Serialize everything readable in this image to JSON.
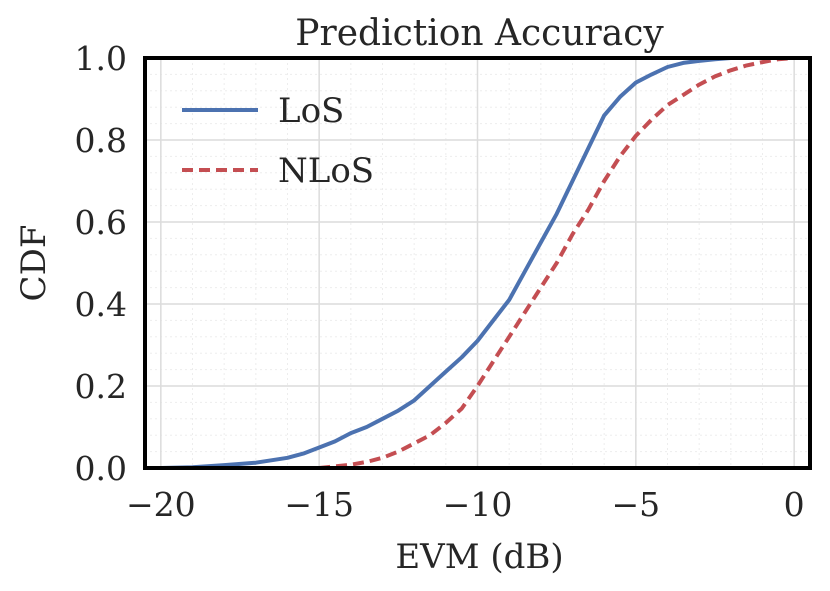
{
  "chart_data": {
    "type": "line",
    "title": "Prediction Accuracy",
    "xlabel": "EVM (dB)",
    "ylabel": "CDF",
    "xlim": [
      -20.5,
      0.5
    ],
    "ylim": [
      0.0,
      1.0
    ],
    "xticks": [
      -20,
      -15,
      -10,
      -5,
      0
    ],
    "xtick_labels": [
      "−20",
      "−15",
      "−10",
      "−5",
      "0"
    ],
    "yticks": [
      0.0,
      0.2,
      0.4,
      0.6,
      0.8,
      1.0
    ],
    "ytick_labels": [
      "0.0",
      "0.2",
      "0.4",
      "0.6",
      "0.8",
      "1.0"
    ],
    "grid": true,
    "legend_position": "top-left",
    "series": [
      {
        "name": "LoS",
        "color": "#4c72b0",
        "style": "solid",
        "x": [
          -20.0,
          -19.0,
          -18.0,
          -17.0,
          -16.0,
          -15.5,
          -15.0,
          -14.5,
          -14.0,
          -13.5,
          -13.0,
          -12.5,
          -12.0,
          -11.5,
          -11.0,
          -10.5,
          -10.0,
          -9.5,
          -9.0,
          -8.5,
          -8.0,
          -7.5,
          -7.0,
          -6.5,
          -6.0,
          -5.5,
          -5.0,
          -4.5,
          -4.0,
          -3.5,
          -3.0,
          -2.5,
          -2.0,
          -1.0,
          0.0
        ],
        "y": [
          0.0,
          0.002,
          0.007,
          0.013,
          0.025,
          0.035,
          0.05,
          0.065,
          0.085,
          0.1,
          0.12,
          0.14,
          0.165,
          0.2,
          0.235,
          0.27,
          0.31,
          0.36,
          0.41,
          0.48,
          0.55,
          0.62,
          0.7,
          0.78,
          0.86,
          0.905,
          0.94,
          0.96,
          0.978,
          0.988,
          0.993,
          0.997,
          1.0,
          1.0,
          1.0
        ]
      },
      {
        "name": "NLoS",
        "color": "#c44e52",
        "style": "dashed",
        "x": [
          -15.0,
          -14.0,
          -13.5,
          -13.0,
          -12.5,
          -12.0,
          -11.5,
          -11.0,
          -10.5,
          -10.0,
          -9.5,
          -9.0,
          -8.5,
          -8.0,
          -7.5,
          -7.0,
          -6.5,
          -6.0,
          -5.5,
          -5.0,
          -4.5,
          -4.0,
          -3.5,
          -3.0,
          -2.5,
          -2.0,
          -1.5,
          -1.0,
          -0.5,
          0.0
        ],
        "y": [
          0.0,
          0.008,
          0.015,
          0.025,
          0.04,
          0.06,
          0.08,
          0.11,
          0.145,
          0.2,
          0.26,
          0.32,
          0.38,
          0.44,
          0.5,
          0.57,
          0.63,
          0.7,
          0.76,
          0.81,
          0.85,
          0.885,
          0.91,
          0.935,
          0.955,
          0.97,
          0.982,
          0.99,
          0.997,
          1.0
        ]
      }
    ]
  }
}
